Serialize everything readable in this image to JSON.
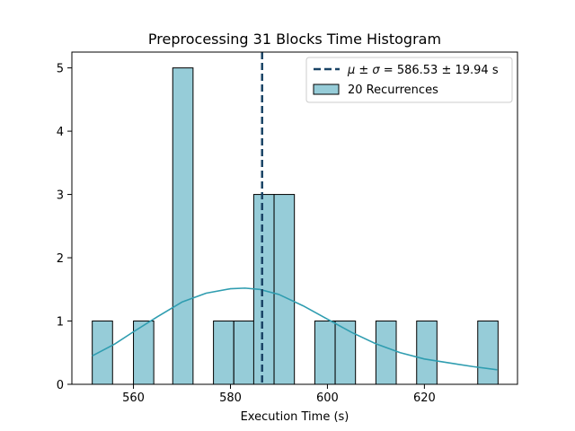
{
  "chart_data": {
    "type": "bar",
    "title": "Preprocessing 31 Blocks Time Histogram",
    "xlabel": "Execution Time (s)",
    "ylabel": "",
    "xlim": [
      547.3,
      639.2
    ],
    "ylim": [
      0,
      5.25
    ],
    "xticks": [
      560,
      580,
      600,
      620
    ],
    "yticks": [
      0,
      1,
      2,
      3,
      4,
      5
    ],
    "bin_width": 4.19,
    "bins": [
      {
        "x0": 551.5,
        "count": 1
      },
      {
        "x0": 560.0,
        "count": 1
      },
      {
        "x0": 568.1,
        "count": 5
      },
      {
        "x0": 576.5,
        "count": 1
      },
      {
        "x0": 580.7,
        "count": 1
      },
      {
        "x0": 584.8,
        "count": 3
      },
      {
        "x0": 589.0,
        "count": 3
      },
      {
        "x0": 597.4,
        "count": 1
      },
      {
        "x0": 601.6,
        "count": 1
      },
      {
        "x0": 610.0,
        "count": 1
      },
      {
        "x0": 618.4,
        "count": 1
      },
      {
        "x0": 631.0,
        "count": 1
      }
    ],
    "kde": {
      "x": [
        551.5,
        556,
        560,
        565,
        570,
        575,
        580,
        583,
        586,
        590,
        595,
        600,
        605,
        610,
        615,
        620,
        625,
        630,
        635
      ],
      "y": [
        0.45,
        0.63,
        0.83,
        1.07,
        1.3,
        1.44,
        1.51,
        1.52,
        1.5,
        1.42,
        1.24,
        1.03,
        0.82,
        0.64,
        0.5,
        0.4,
        0.34,
        0.28,
        0.23
      ]
    },
    "mean": 586.53,
    "std": 19.94,
    "legend": {
      "position": "upper-right",
      "mean_label_prefix": "μ ± σ = ",
      "mean_label_value": "586.53 ± 19.94 s",
      "hist_label": "20 Recurrences"
    },
    "colors": {
      "bar_fill": "#96ccd8",
      "bar_edge": "#000000",
      "kde_line": "#2f9db0",
      "mean_line": "#1a4466"
    }
  }
}
